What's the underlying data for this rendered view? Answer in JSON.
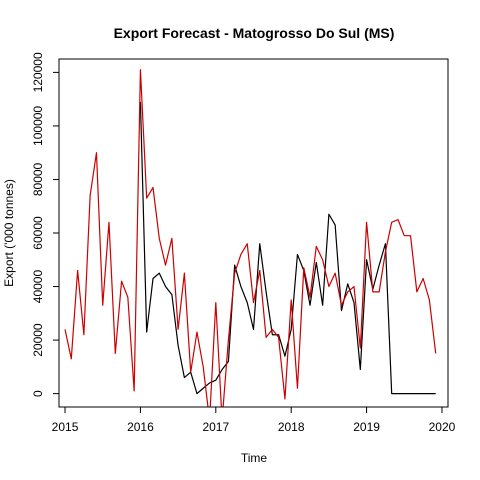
{
  "chart_data": {
    "type": "line",
    "title": "Export Forecast - Matogrosso Do Sul (MS)",
    "xlabel": "Time",
    "ylabel": "Export ('000 tonnes)",
    "xlim": [
      2014.92,
      2020.08
    ],
    "ylim": [
      -5000,
      125000
    ],
    "xticks": [
      2015,
      2016,
      2017,
      2018,
      2019,
      2020
    ],
    "yticks": [
      0,
      20000,
      40000,
      60000,
      80000,
      100000,
      120000
    ],
    "grid": false,
    "legend": "none",
    "series": [
      {
        "color": "#000000",
        "x": [
          2016.0,
          2016.083,
          2016.167,
          2016.25,
          2016.333,
          2016.417,
          2016.5,
          2016.583,
          2016.667,
          2016.75,
          2016.833,
          2016.917,
          2017.0,
          2017.083,
          2017.167,
          2017.25,
          2017.333,
          2017.417,
          2017.5,
          2017.583,
          2017.667,
          2017.75,
          2017.833,
          2017.917,
          2018.0,
          2018.083,
          2018.167,
          2018.25,
          2018.333,
          2018.417,
          2018.5,
          2018.583,
          2018.667,
          2018.75,
          2018.833,
          2018.917,
          2019.0,
          2019.083,
          2019.167,
          2019.25,
          2019.333,
          2019.417,
          2019.5,
          2019.583,
          2019.667,
          2019.75,
          2019.833,
          2019.917
        ],
        "y": [
          109000,
          23000,
          43000,
          45000,
          40000,
          37000,
          18000,
          6000,
          8000,
          0,
          2000,
          4000,
          5000,
          9000,
          12000,
          48000,
          40000,
          34000,
          24000,
          56000,
          38000,
          22000,
          22000,
          14000,
          24000,
          52000,
          46000,
          33000,
          49000,
          33000,
          67000,
          63000,
          31000,
          41000,
          34000,
          9000,
          50000,
          39000,
          48000,
          56000,
          0,
          0,
          0,
          0,
          0,
          0,
          0,
          0
        ]
      },
      {
        "color": "#cc0000",
        "x": [
          2015.0,
          2015.083,
          2015.167,
          2015.25,
          2015.333,
          2015.417,
          2015.5,
          2015.583,
          2015.667,
          2015.75,
          2015.833,
          2015.917,
          2016.0,
          2016.083,
          2016.167,
          2016.25,
          2016.333,
          2016.417,
          2016.5,
          2016.583,
          2016.667,
          2016.75,
          2016.833,
          2016.917,
          2017.0,
          2017.083,
          2017.167,
          2017.25,
          2017.333,
          2017.417,
          2017.5,
          2017.583,
          2017.667,
          2017.75,
          2017.833,
          2017.917,
          2018.0,
          2018.083,
          2018.167,
          2018.25,
          2018.333,
          2018.417,
          2018.5,
          2018.583,
          2018.667,
          2018.75,
          2018.833,
          2018.917,
          2019.0,
          2019.083,
          2019.167,
          2019.25,
          2019.333,
          2019.417,
          2019.5,
          2019.583,
          2019.667,
          2019.75,
          2019.833,
          2019.917
        ],
        "y": [
          24000,
          13000,
          46000,
          22000,
          74000,
          90000,
          33000,
          64000,
          15000,
          42000,
          36000,
          1000,
          121000,
          73000,
          77000,
          58000,
          48000,
          58000,
          24000,
          45000,
          8000,
          23000,
          10000,
          -10000,
          34000,
          -10000,
          20000,
          45000,
          52000,
          56000,
          34000,
          46000,
          21000,
          24000,
          21000,
          -2000,
          35000,
          2000,
          47000,
          36000,
          55000,
          50000,
          40000,
          45000,
          33000,
          38000,
          40000,
          17000,
          64000,
          38000,
          38000,
          53000,
          64000,
          65000,
          59000,
          59000,
          38000,
          43000,
          35000,
          15000
        ]
      }
    ]
  }
}
